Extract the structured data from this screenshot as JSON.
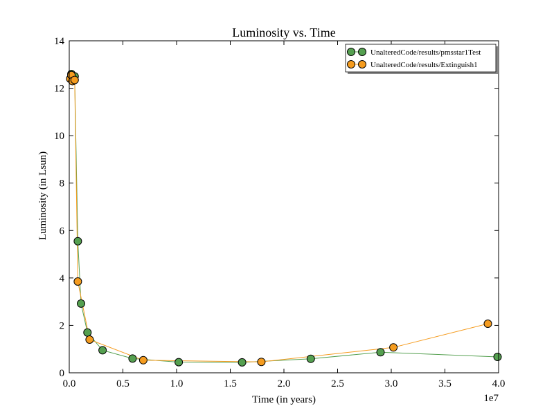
{
  "chart_data": {
    "type": "line",
    "title": "Luminosity vs. Time",
    "xlabel": "Time (in years)",
    "ylabel": "Luminosity (in Lsun)",
    "x_offset_label": "1e7",
    "xlim": [
      0,
      4.0
    ],
    "ylim": [
      0,
      14
    ],
    "x_ticks": [
      0.0,
      0.5,
      1.0,
      1.5,
      2.0,
      2.5,
      3.0,
      3.5,
      4.0
    ],
    "x_tick_labels": [
      "0.0",
      "0.5",
      "1.0",
      "1.5",
      "2.0",
      "2.5",
      "3.0",
      "3.5",
      "4.0"
    ],
    "y_ticks": [
      0,
      2,
      4,
      6,
      8,
      10,
      12,
      14
    ],
    "y_tick_labels": [
      "0",
      "2",
      "4",
      "6",
      "8",
      "10",
      "12",
      "14"
    ],
    "grid": false,
    "legend_position": "top-right",
    "series": [
      {
        "name": "UnalteredCode/results/pmsstar1Test",
        "color": "#55a050",
        "x": [
          0.01,
          0.02,
          0.03,
          0.05,
          0.08,
          0.11,
          0.17,
          0.31,
          0.59,
          1.02,
          1.61,
          2.25,
          2.9,
          3.99
        ],
        "y": [
          12.4,
          12.6,
          12.3,
          12.5,
          5.55,
          2.92,
          1.7,
          0.95,
          0.6,
          0.45,
          0.44,
          0.59,
          0.87,
          0.67
        ]
      },
      {
        "name": "UnalteredCode/results/Extinguish1",
        "color": "#f59c1f",
        "x": [
          0.01,
          0.02,
          0.03,
          0.05,
          0.08,
          0.19,
          0.69,
          1.79,
          3.02,
          3.9
        ],
        "y": [
          12.4,
          12.55,
          12.3,
          12.35,
          3.85,
          1.4,
          0.53,
          0.46,
          1.07,
          2.07
        ]
      }
    ]
  }
}
